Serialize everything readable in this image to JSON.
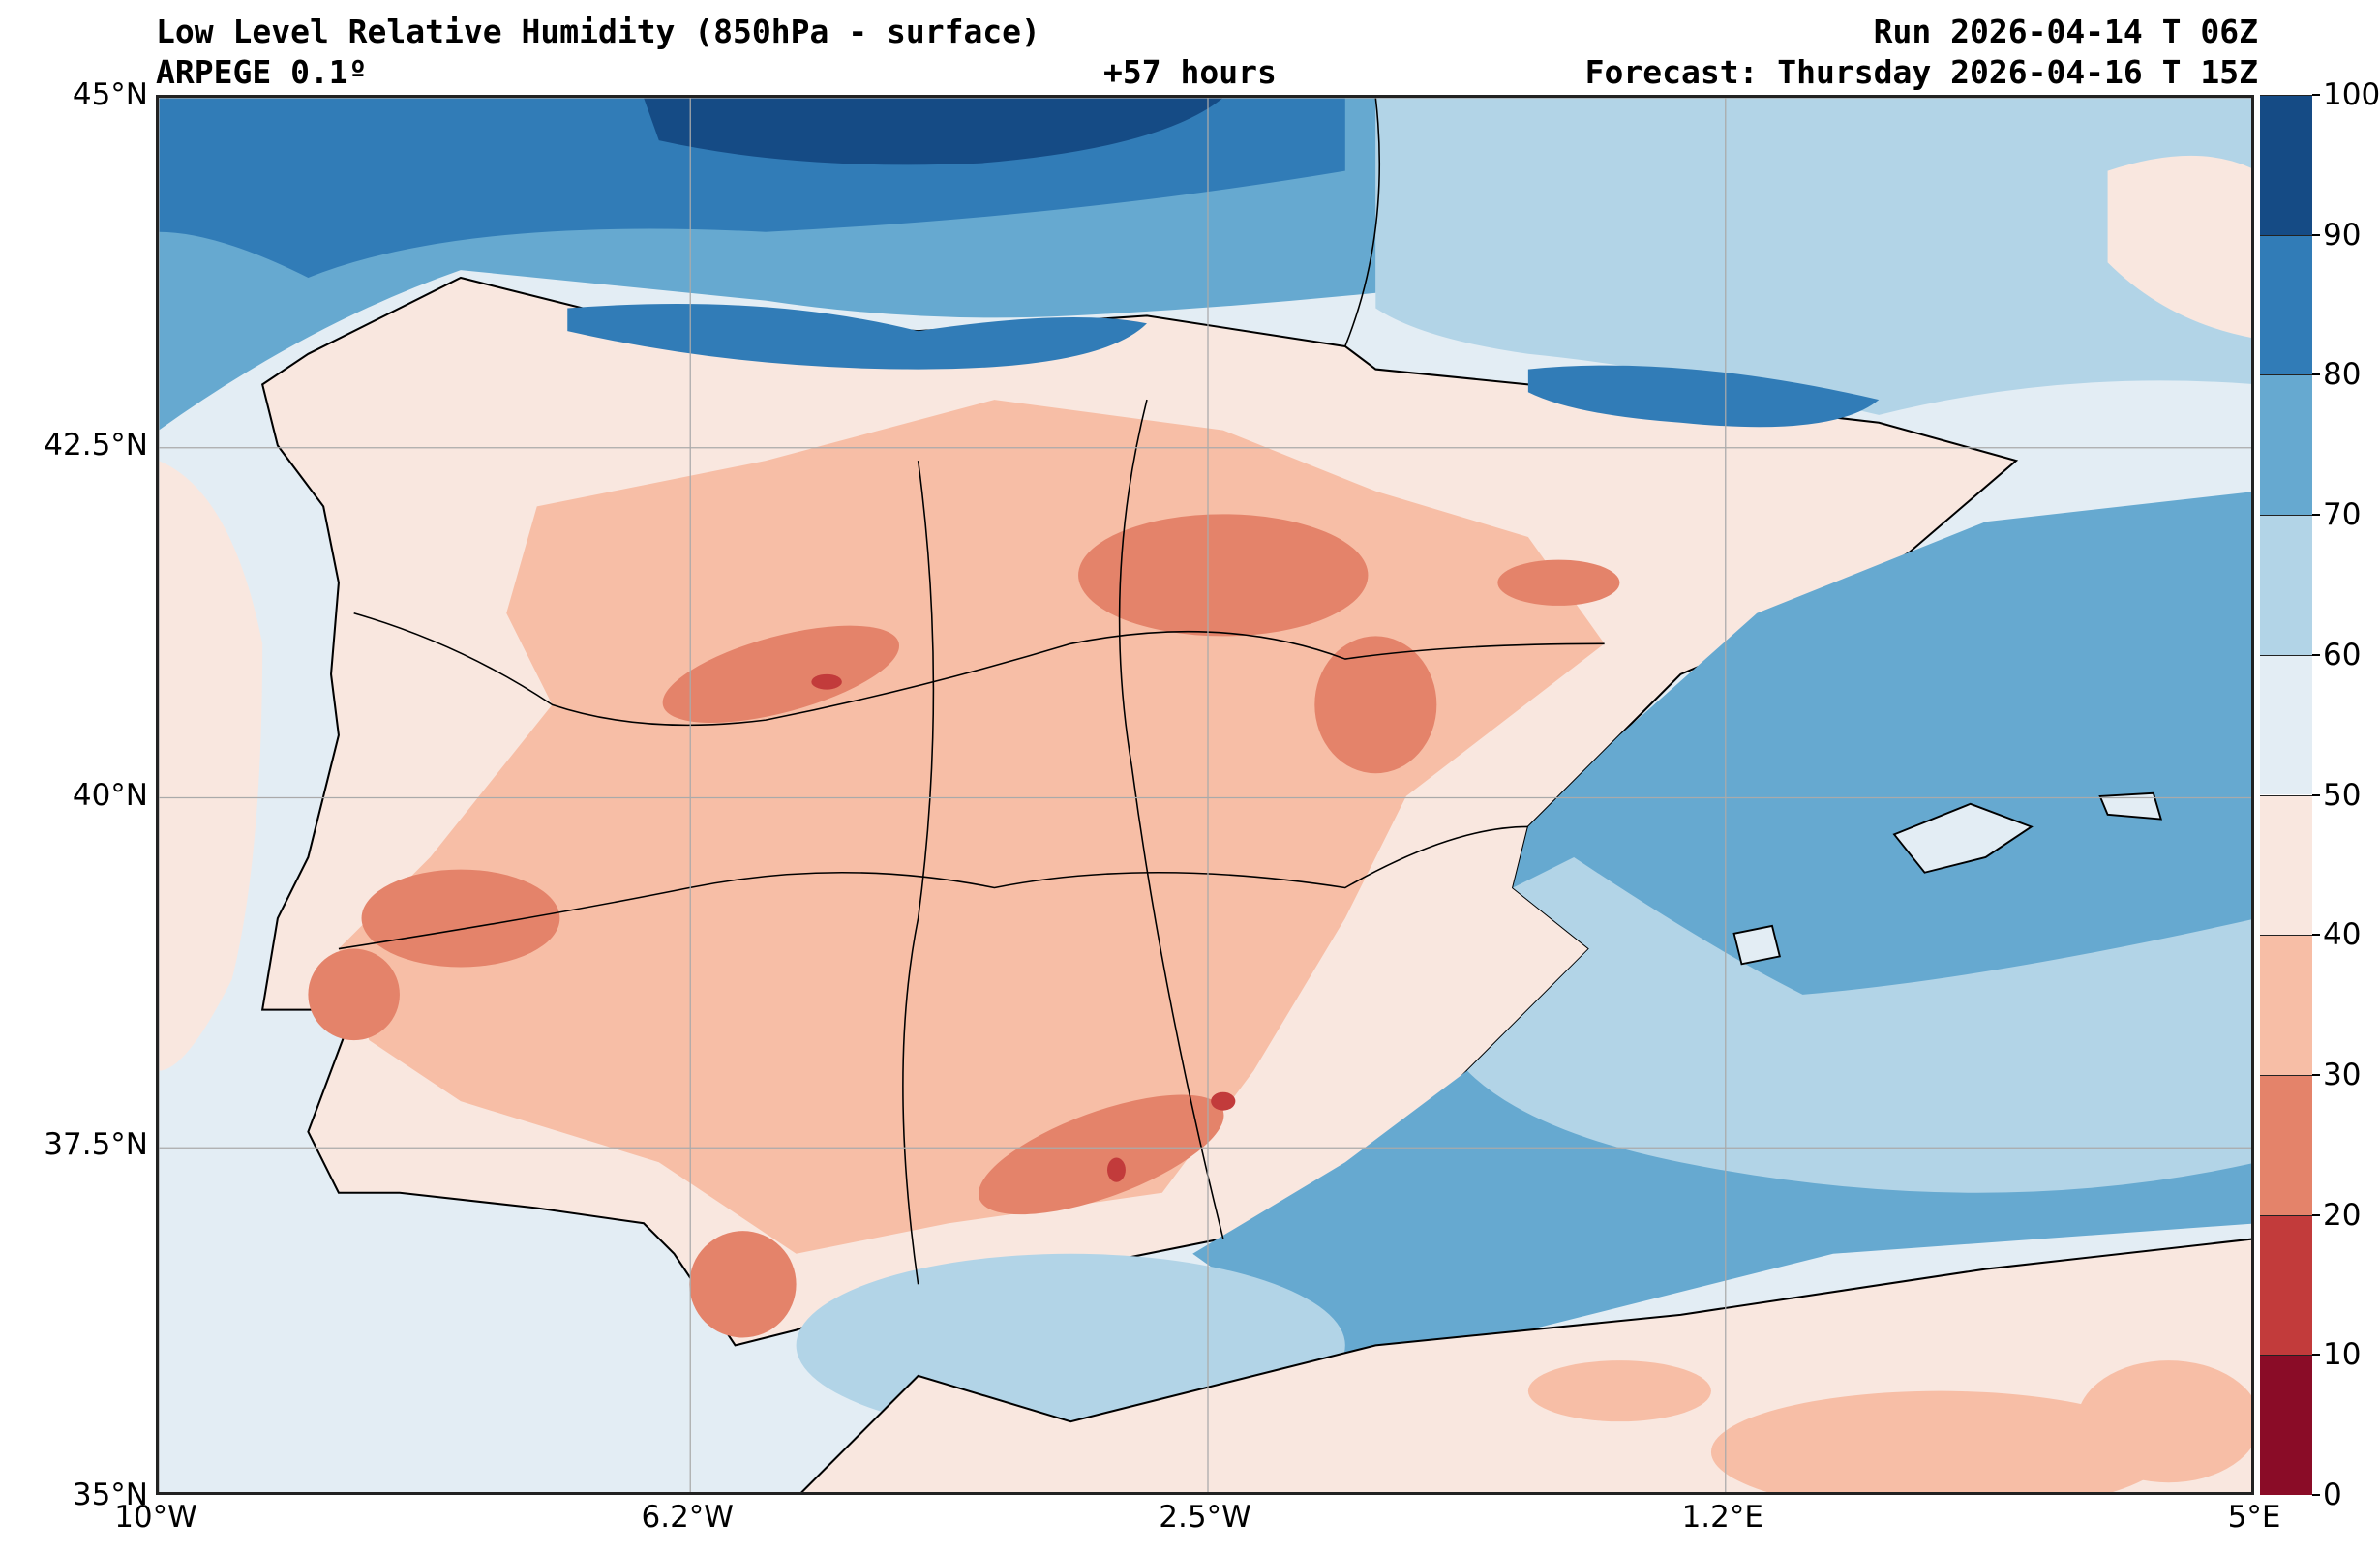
{
  "header": {
    "title": "Low Level Relative Humidity (850hPa - surface)",
    "run": "Run 2026-04-14 T 06Z",
    "model": "ARPEGE 0.1º",
    "lead": "+57 hours",
    "forecast": "Forecast: Thursday 2026-04-16 T 15Z"
  },
  "chart_data": {
    "type": "heatmap",
    "variable": "Relative Humidity (%)",
    "lon_range": [
      -10,
      5
    ],
    "lat_range": [
      35,
      45
    ],
    "lon_ticks": [
      {
        "value": -10,
        "label": "10°W"
      },
      {
        "value": -6.2,
        "label": "6.2°W"
      },
      {
        "value": -2.5,
        "label": "2.5°W"
      },
      {
        "value": 1.2,
        "label": "1.2°E"
      },
      {
        "value": 5,
        "label": "5°E"
      }
    ],
    "lat_ticks": [
      {
        "value": 35,
        "label": "35°N"
      },
      {
        "value": 37.5,
        "label": "37.5°N"
      },
      {
        "value": 40,
        "label": "40°N"
      },
      {
        "value": 42.5,
        "label": "42.5°N"
      },
      {
        "value": 45,
        "label": "45°N"
      }
    ],
    "grid": true,
    "colorbar": {
      "levels": [
        0,
        10,
        20,
        30,
        40,
        50,
        60,
        70,
        80,
        90,
        100
      ],
      "labels": [
        "0",
        "10",
        "20",
        "30",
        "40",
        "50",
        "60",
        "70",
        "80",
        "90",
        "100"
      ],
      "colors": [
        "#8a0c27",
        "#c23b3b",
        "#e4836a",
        "#f7bea6",
        "#f9e7df",
        "#e3edf4",
        "#b2d4e7",
        "#66a9d0",
        "#317cb7",
        "#154b85"
      ],
      "placement": "right"
    }
  }
}
